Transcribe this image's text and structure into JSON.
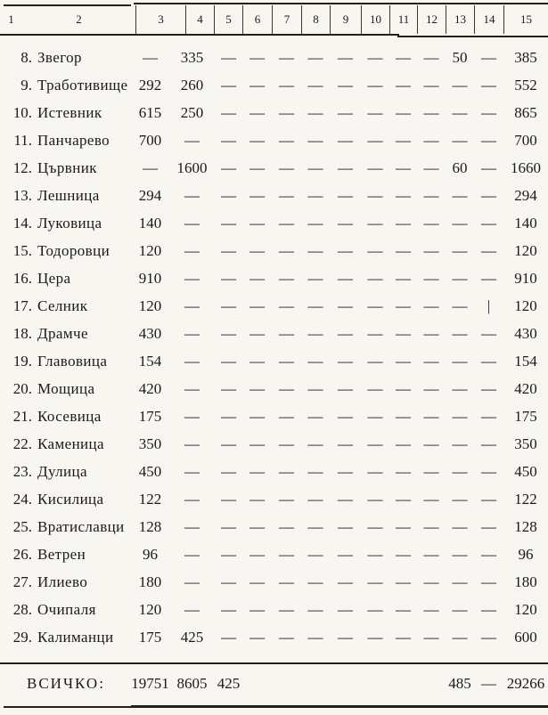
{
  "colors": {
    "background": "#f8f6f1",
    "ink": "#1b1a18",
    "rule": "#222019"
  },
  "header": {
    "columns": [
      "1",
      "2",
      "3",
      "4",
      "5",
      "6",
      "7",
      "8",
      "9",
      "10",
      "11",
      "12",
      "13",
      "14",
      "15"
    ]
  },
  "rows": [
    {
      "num": "8.",
      "name": "Звегор",
      "cells": [
        "—",
        "335",
        "—",
        "—",
        "—",
        "—",
        "—",
        "—",
        "—",
        "—",
        "50",
        "—",
        "385"
      ]
    },
    {
      "num": "9.",
      "name": "Тработивище",
      "cells": [
        "292",
        "260",
        "—",
        "—",
        "—",
        "—",
        "—",
        "—",
        "—",
        "—",
        "—",
        "—",
        "552"
      ]
    },
    {
      "num": "10.",
      "name": "Истевник",
      "cells": [
        "615",
        "250",
        "—",
        "—",
        "—",
        "—",
        "—",
        "—",
        "—",
        "—",
        "—",
        "—",
        "865"
      ]
    },
    {
      "num": "11.",
      "name": "Панчарево",
      "cells": [
        "700",
        "—",
        "—",
        "—",
        "—",
        "—",
        "—",
        "—",
        "—",
        "—",
        "—",
        "—",
        "700"
      ]
    },
    {
      "num": "12.",
      "name": "Цървник",
      "cells": [
        "—",
        "1600",
        "—",
        "—",
        "—",
        "—",
        "—",
        "—",
        "—",
        "—",
        "60",
        "—",
        "1660"
      ]
    },
    {
      "num": "13.",
      "name": "Лешница",
      "cells": [
        "294",
        "—",
        "—",
        "—",
        "—",
        "—",
        "—",
        "—",
        "—",
        "—",
        "—",
        "—",
        "294"
      ]
    },
    {
      "num": "14.",
      "name": "Луковица",
      "cells": [
        "140",
        "—",
        "—",
        "—",
        "—",
        "—",
        "—",
        "—",
        "—",
        "—",
        "—",
        "—",
        "140"
      ]
    },
    {
      "num": "15.",
      "name": "Тодоровци",
      "cells": [
        "120",
        "—",
        "—",
        "—",
        "—",
        "—",
        "—",
        "—",
        "—",
        "—",
        "—",
        "—",
        "120"
      ]
    },
    {
      "num": "16.",
      "name": "Цера",
      "cells": [
        "910",
        "—",
        "—",
        "—",
        "—",
        "—",
        "—",
        "—",
        "—",
        "—",
        "—",
        "—",
        "910"
      ]
    },
    {
      "num": "17.",
      "name": "Селник",
      "cells": [
        "120",
        "—",
        "—",
        "—",
        "—",
        "—",
        "—",
        "—",
        "—",
        "—",
        "—",
        "|",
        "120"
      ]
    },
    {
      "num": "18.",
      "name": "Драмче",
      "cells": [
        "430",
        "—",
        "—",
        "—",
        "—",
        "—",
        "—",
        "—",
        "—",
        "—",
        "—",
        "—",
        "430"
      ]
    },
    {
      "num": "19.",
      "name": "Главовица",
      "cells": [
        "154",
        "—",
        "—",
        "—",
        "—",
        "—",
        "—",
        "—",
        "—",
        "—",
        "—",
        "—",
        "154"
      ]
    },
    {
      "num": "20.",
      "name": "Мощица",
      "cells": [
        "420",
        "—",
        "—",
        "—",
        "—",
        "—",
        "—",
        "—",
        "—",
        "—",
        "—",
        "—",
        "420"
      ]
    },
    {
      "num": "21.",
      "name": "Косевица",
      "cells": [
        "175",
        "—",
        "—",
        "—",
        "—",
        "—",
        "—",
        "—",
        "—",
        "—",
        "—",
        "—",
        "175"
      ]
    },
    {
      "num": "22.",
      "name": "Каменица",
      "cells": [
        "350",
        "—",
        "—",
        "—",
        "—",
        "—",
        "—",
        "—",
        "—",
        "—",
        "—",
        "—",
        "350"
      ]
    },
    {
      "num": "23.",
      "name": "Дулица",
      "cells": [
        "450",
        "—",
        "—",
        "—",
        "—",
        "—",
        "—",
        "—",
        "—",
        "—",
        "—",
        "—",
        "450"
      ]
    },
    {
      "num": "24.",
      "name": "Кисилица",
      "cells": [
        "122",
        "—",
        "—",
        "—",
        "—",
        "—",
        "—",
        "—",
        "—",
        "—",
        "—",
        "—",
        "122"
      ]
    },
    {
      "num": "25.",
      "name": "Вратиславци",
      "cells": [
        "128",
        "—",
        "—",
        "—",
        "—",
        "—",
        "—",
        "—",
        "—",
        "—",
        "—",
        "—",
        "128"
      ]
    },
    {
      "num": "26.",
      "name": "Ветрен",
      "cells": [
        "96",
        "—",
        "—",
        "—",
        "—",
        "—",
        "—",
        "—",
        "—",
        "—",
        "—",
        "—",
        "96"
      ]
    },
    {
      "num": "27.",
      "name": "Илиево",
      "cells": [
        "180",
        "—",
        "—",
        "—",
        "—",
        "—",
        "—",
        "—",
        "—",
        "—",
        "—",
        "—",
        "180"
      ]
    },
    {
      "num": "28.",
      "name": "Очипаля",
      "cells": [
        "120",
        "—",
        "—",
        "—",
        "—",
        "—",
        "—",
        "—",
        "—",
        "—",
        "—",
        "—",
        "120"
      ]
    },
    {
      "num": "29.",
      "name": "Калиманци",
      "cells": [
        "175",
        "425",
        "—",
        "—",
        "—",
        "—",
        "—",
        "—",
        "—",
        "—",
        "—",
        "—",
        "600"
      ]
    }
  ],
  "footer": {
    "label": "ВСИЧКО:",
    "cells": [
      "19751",
      "8605",
      "425",
      "",
      "",
      "",
      "",
      "",
      "",
      "",
      "485",
      "—",
      "29266"
    ]
  }
}
